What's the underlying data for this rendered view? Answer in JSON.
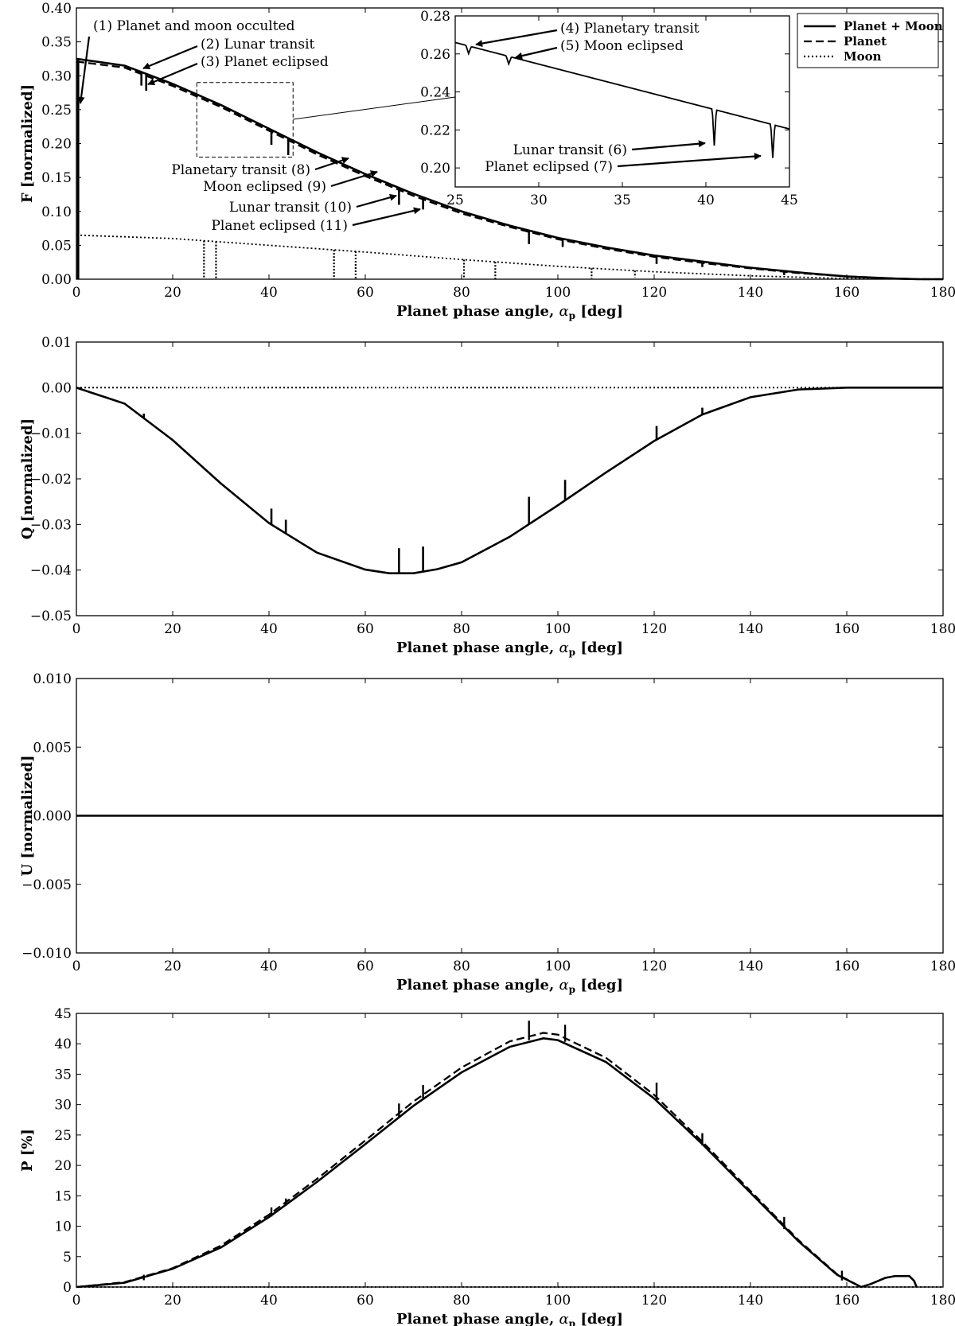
{
  "chart_data": [
    {
      "id": "F",
      "type": "line",
      "ylabel": "F [normalized]",
      "xlabel": "Planet phase angle, α_p [deg]",
      "xlim": [
        0,
        180
      ],
      "ylim": [
        0,
        0.4
      ],
      "xticks": [
        0,
        20,
        40,
        60,
        80,
        100,
        120,
        140,
        160,
        180
      ],
      "xtick_labels": [
        "0",
        "20",
        "40",
        "60",
        "80",
        "100",
        "120",
        "140",
        "160",
        "180"
      ],
      "yticks": [
        0,
        0.05,
        0.1,
        0.15,
        0.2,
        0.25,
        0.3,
        0.35,
        0.4
      ],
      "ytick_labels": [
        "0.00",
        "0.05",
        "0.10",
        "0.15",
        "0.20",
        "0.25",
        "0.30",
        "0.35",
        "0.40"
      ],
      "legend": {
        "position": "top-right",
        "entries": [
          {
            "label": "Planet + Moon",
            "style": "solid"
          },
          {
            "label": "Planet",
            "style": "dashed"
          },
          {
            "label": "Moon",
            "style": "dotted"
          }
        ]
      },
      "series": [
        {
          "name": "Planet + Moon",
          "style": "solid",
          "x": [
            0,
            10,
            20,
            30,
            40,
            50,
            60,
            70,
            80,
            90,
            100,
            110,
            120,
            130,
            140,
            150,
            160,
            170,
            175,
            180
          ],
          "values": [
            0.325,
            0.315,
            0.288,
            0.257,
            0.222,
            0.187,
            0.155,
            0.126,
            0.1,
            0.079,
            0.061,
            0.047,
            0.035,
            0.026,
            0.017,
            0.01,
            0.004,
            0.001,
            0.0,
            0.0
          ]
        },
        {
          "name": "Planet",
          "style": "dashed",
          "x": [
            0,
            10,
            20,
            30,
            40,
            50,
            60,
            70,
            80,
            90,
            100,
            110,
            120,
            130,
            140,
            150,
            160,
            170,
            175,
            180
          ],
          "values": [
            0.321,
            0.312,
            0.285,
            0.254,
            0.219,
            0.184,
            0.152,
            0.123,
            0.097,
            0.077,
            0.059,
            0.045,
            0.033,
            0.024,
            0.016,
            0.009,
            0.004,
            0.001,
            0.0,
            0.0
          ]
        },
        {
          "name": "Moon",
          "style": "dotted",
          "x": [
            0,
            20,
            40,
            60,
            80,
            100,
            120,
            140,
            160,
            180
          ],
          "values": [
            0.065,
            0.06,
            0.05,
            0.04,
            0.029,
            0.019,
            0.011,
            0.005,
            0.001,
            0.0
          ]
        }
      ],
      "dips": [
        {
          "x": 13.5,
          "depth": 0.02
        },
        {
          "x": 14.5,
          "depth": 0.025
        },
        {
          "x": 40.5,
          "depth": 0.022
        },
        {
          "x": 44,
          "depth": 0.025
        },
        {
          "x": 67,
          "depth": 0.025
        },
        {
          "x": 72,
          "depth": 0.018
        },
        {
          "x": 94,
          "depth": 0.02
        },
        {
          "x": 101,
          "depth": 0.012
        },
        {
          "x": 120.5,
          "depth": 0.012
        },
        {
          "x": 130,
          "depth": 0.008
        },
        {
          "x": 147,
          "depth": 0.006
        }
      ],
      "moon_dips": [
        {
          "x": 26.5,
          "depth": 0.062
        },
        {
          "x": 29,
          "depth": 0.06
        },
        {
          "x": 53.5,
          "depth": 0.045
        },
        {
          "x": 58,
          "depth": 0.043
        },
        {
          "x": 80.5,
          "depth": 0.028
        },
        {
          "x": 87,
          "depth": 0.026
        },
        {
          "x": 107,
          "depth": 0.015
        },
        {
          "x": 116,
          "depth": 0.01
        }
      ],
      "annotations": [
        "(1) Planet and moon occulted",
        "(2) Lunar transit",
        "(3) Planet eclipsed",
        "Planetary transit (8)",
        "Moon eclipsed (9)",
        "Lunar transit (10)",
        "Planet eclipsed (11)"
      ],
      "inset": {
        "xlim": [
          25,
          45
        ],
        "ylim": [
          0.19,
          0.28
        ],
        "xticks": [
          25,
          30,
          35,
          40,
          45
        ],
        "xtick_labels": [
          "25",
          "30",
          "35",
          "40",
          "45"
        ],
        "yticks": [
          0.2,
          0.22,
          0.24,
          0.26,
          0.28
        ],
        "ytick_labels": [
          "0.20",
          "0.22",
          "0.24",
          "0.26",
          "0.28"
        ],
        "x": [
          25,
          45
        ],
        "values": [
          0.266,
          0.2205
        ],
        "dips": [
          {
            "x": 25.8,
            "depth": 0.004
          },
          {
            "x": 28.2,
            "depth": 0.004
          },
          {
            "x": 40.5,
            "depth": 0.019
          },
          {
            "x": 44,
            "depth": 0.0175
          }
        ],
        "annotations": [
          "(4) Planetary transit",
          "(5) Moon eclipsed",
          "Lunar transit (6)",
          "Planet eclipsed (7)"
        ],
        "zoom_box": {
          "x": [
            25,
            45
          ],
          "y": [
            0.18,
            0.29
          ]
        }
      }
    },
    {
      "id": "Q",
      "type": "line",
      "ylabel": "Q [normalized]",
      "xlabel": "Planet phase angle, α_p [deg]",
      "xlim": [
        0,
        180
      ],
      "ylim": [
        -0.05,
        0.01
      ],
      "xticks": [
        0,
        20,
        40,
        60,
        80,
        100,
        120,
        140,
        160,
        180
      ],
      "xtick_labels": [
        "0",
        "20",
        "40",
        "60",
        "80",
        "100",
        "120",
        "140",
        "160",
        "180"
      ],
      "yticks": [
        -0.05,
        -0.04,
        -0.03,
        -0.02,
        -0.01,
        0.0,
        0.01
      ],
      "ytick_labels": [
        "−0.05",
        "−0.04",
        "−0.03",
        "−0.02",
        "−0.01",
        "0.00",
        "0.01"
      ],
      "series": [
        {
          "name": "Planet + Moon",
          "style": "solid",
          "x": [
            0,
            10,
            20,
            30,
            40,
            50,
            60,
            65,
            70,
            75,
            80,
            90,
            100,
            110,
            120,
            130,
            140,
            150,
            160,
            170,
            180
          ],
          "values": [
            0.0,
            -0.0035,
            -0.0115,
            -0.021,
            -0.0297,
            -0.0362,
            -0.0399,
            -0.0407,
            -0.0407,
            -0.0398,
            -0.0383,
            -0.0327,
            -0.0258,
            -0.0186,
            -0.0117,
            -0.0059,
            -0.0021,
            -0.0004,
            0.0,
            0.0,
            0.0
          ]
        },
        {
          "name": "Moon",
          "style": "dotted",
          "x": [
            0,
            180
          ],
          "values": [
            0.0,
            0.0
          ]
        }
      ],
      "spikes": [
        {
          "x": 14,
          "dy": 0.001
        },
        {
          "x": 40.5,
          "dy": 0.0035
        },
        {
          "x": 43.5,
          "dy": 0.003
        },
        {
          "x": 67,
          "dy": 0.0055
        },
        {
          "x": 72,
          "dy": 0.0055
        },
        {
          "x": 94,
          "dy": 0.006
        },
        {
          "x": 101.5,
          "dy": 0.0045
        },
        {
          "x": 120.5,
          "dy": 0.003
        },
        {
          "x": 130,
          "dy": 0.0015
        }
      ]
    },
    {
      "id": "U",
      "type": "line",
      "ylabel": "U [normalized]",
      "xlabel": "Planet phase angle, α_p [deg]",
      "xlim": [
        0,
        180
      ],
      "ylim": [
        -0.01,
        0.01
      ],
      "xticks": [
        0,
        20,
        40,
        60,
        80,
        100,
        120,
        140,
        160,
        180
      ],
      "xtick_labels": [
        "0",
        "20",
        "40",
        "60",
        "80",
        "100",
        "120",
        "140",
        "160",
        "180"
      ],
      "yticks": [
        -0.01,
        -0.005,
        0.0,
        0.005,
        0.01
      ],
      "ytick_labels": [
        "−0.010",
        "−0.005",
        "0.000",
        "0.005",
        "0.010"
      ],
      "series": [
        {
          "name": "Planet + Moon",
          "style": "solid",
          "x": [
            0,
            180
          ],
          "values": [
            0.0,
            0.0
          ]
        }
      ]
    },
    {
      "id": "P",
      "type": "line",
      "ylabel": "P [%]",
      "xlabel": "Planet phase angle, α_p [deg]",
      "xlim": [
        0,
        180
      ],
      "ylim": [
        0,
        45
      ],
      "xticks": [
        0,
        20,
        40,
        60,
        80,
        100,
        120,
        140,
        160,
        180
      ],
      "xtick_labels": [
        "0",
        "20",
        "40",
        "60",
        "80",
        "100",
        "120",
        "140",
        "160",
        "180"
      ],
      "yticks": [
        0,
        5,
        10,
        15,
        20,
        25,
        30,
        35,
        40,
        45
      ],
      "ytick_labels": [
        "0",
        "5",
        "10",
        "15",
        "20",
        "25",
        "30",
        "35",
        "40",
        "45"
      ],
      "series": [
        {
          "name": "Planet + Moon",
          "style": "solid",
          "x": [
            0,
            10,
            20,
            30,
            40,
            50,
            60,
            70,
            80,
            90,
            97,
            100,
            110,
            120,
            130,
            140,
            150,
            158,
            163,
            165,
            168,
            170,
            173,
            174,
            174.5
          ],
          "values": [
            0,
            0.7,
            3.0,
            6.5,
            11.5,
            17.3,
            23.5,
            29.8,
            35.3,
            39.5,
            40.9,
            40.6,
            37.0,
            31.0,
            23.5,
            15.5,
            7.5,
            2.0,
            0.0,
            0.5,
            1.5,
            1.8,
            1.8,
            1.0,
            0.0
          ]
        },
        {
          "name": "Planet",
          "style": "dashed",
          "x": [
            0,
            10,
            20,
            30,
            40,
            50,
            60,
            70,
            80,
            90,
            97,
            100,
            110,
            120,
            130,
            140,
            150,
            158,
            163
          ],
          "values": [
            0,
            0.8,
            3.1,
            6.8,
            11.9,
            17.8,
            24.1,
            30.5,
            36.1,
            40.4,
            41.8,
            41.5,
            37.7,
            31.6,
            23.9,
            15.8,
            7.7,
            2.1,
            0.0
          ]
        },
        {
          "name": "Moon",
          "style": "dotted",
          "x": [
            0,
            180
          ],
          "values": [
            0.0,
            0.0
          ]
        }
      ],
      "spikes": [
        {
          "x": 14,
          "dy": 0.3
        },
        {
          "x": 40.5,
          "dy": 0.9
        },
        {
          "x": 43.5,
          "dy": 0.6
        },
        {
          "x": 67,
          "dy": 1.6
        },
        {
          "x": 72,
          "dy": 1.6
        },
        {
          "x": 94,
          "dy": 2.6
        },
        {
          "x": 101.5,
          "dy": 2.2
        },
        {
          "x": 120.5,
          "dy": 2.4
        },
        {
          "x": 130,
          "dy": 1.4
        },
        {
          "x": 147,
          "dy": 1.4
        },
        {
          "x": 159,
          "dy": 1.0
        }
      ]
    }
  ]
}
